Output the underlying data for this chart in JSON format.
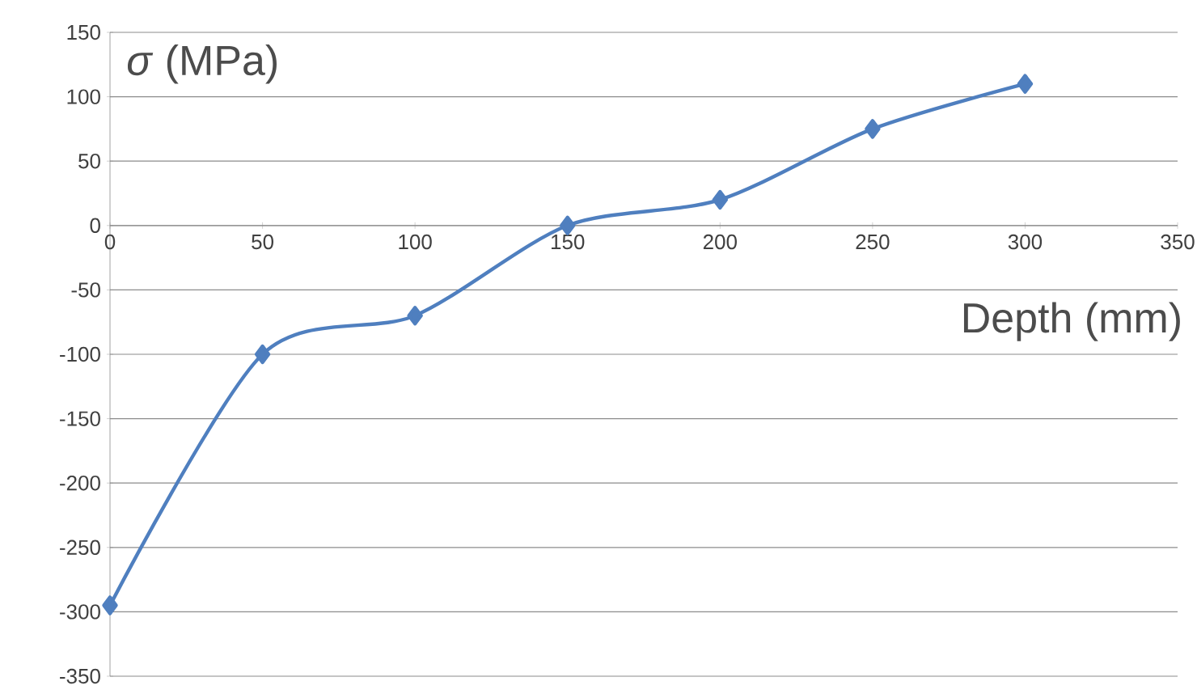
{
  "chart_data": {
    "type": "line",
    "xlabel": "Depth (mm)",
    "ylabel": "*σ* (MPa)",
    "x": [
      0,
      50,
      100,
      150,
      200,
      250,
      300
    ],
    "series": [
      {
        "color": "#4f7fbf",
        "values": [
          -295,
          -100,
          -70,
          0,
          20,
          75,
          110
        ]
      }
    ],
    "xlim": [
      0,
      350
    ],
    "xticks": [
      0,
      50,
      100,
      150,
      200,
      250,
      300,
      350
    ],
    "ylim": [
      -350,
      150
    ],
    "yticks": [
      -350,
      -300,
      -250,
      -200,
      -150,
      -100,
      -50,
      0,
      50,
      100,
      150
    ],
    "grid": "y",
    "marker": "diamond",
    "line_style": "solid"
  }
}
